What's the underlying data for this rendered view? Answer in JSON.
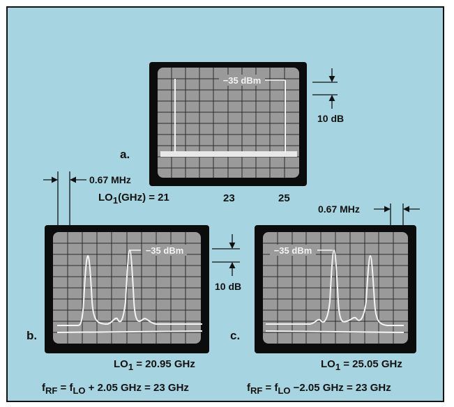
{
  "figure": {
    "colors": {
      "panel_bg": "#a6d5e1",
      "screen_bg": "#0c0c0c",
      "screen_face": "#9a9a9a",
      "trace": "#f4f4f4"
    },
    "panel_a": {
      "letter": "a.",
      "marker": "−35 dBm",
      "scale": "10 dB",
      "lo_axis_label": "LO",
      "lo_axis_sub": "1",
      "lo_axis_suffix": "(GHz) = 21",
      "tick_23": "23",
      "tick_25": "25",
      "span_label": "0.67 MHz"
    },
    "panel_b": {
      "letter": "b.",
      "marker": "−35 dBm",
      "lo_prefix": "LO",
      "lo_sub": "1",
      "lo_suffix": " = 20.95 GHz",
      "formula": {
        "f1": "f",
        "s1": "RF",
        "mid1": " = f",
        "s2": "LO",
        "tail": " + 2.05 GHz = 23 GHz"
      }
    },
    "panel_c": {
      "letter": "c.",
      "marker": "−35 dBm",
      "span_label": "0.67 MHz",
      "lo_prefix": "LO",
      "lo_sub": "1",
      "lo_suffix": " = 25.05 GHz",
      "formula": {
        "f1": "f",
        "s1": "RF",
        "mid1": " = f",
        "s2": "LO",
        "tail": " −2.05 GHz = 23 GHz"
      }
    },
    "scale_mid": "10 dB"
  }
}
